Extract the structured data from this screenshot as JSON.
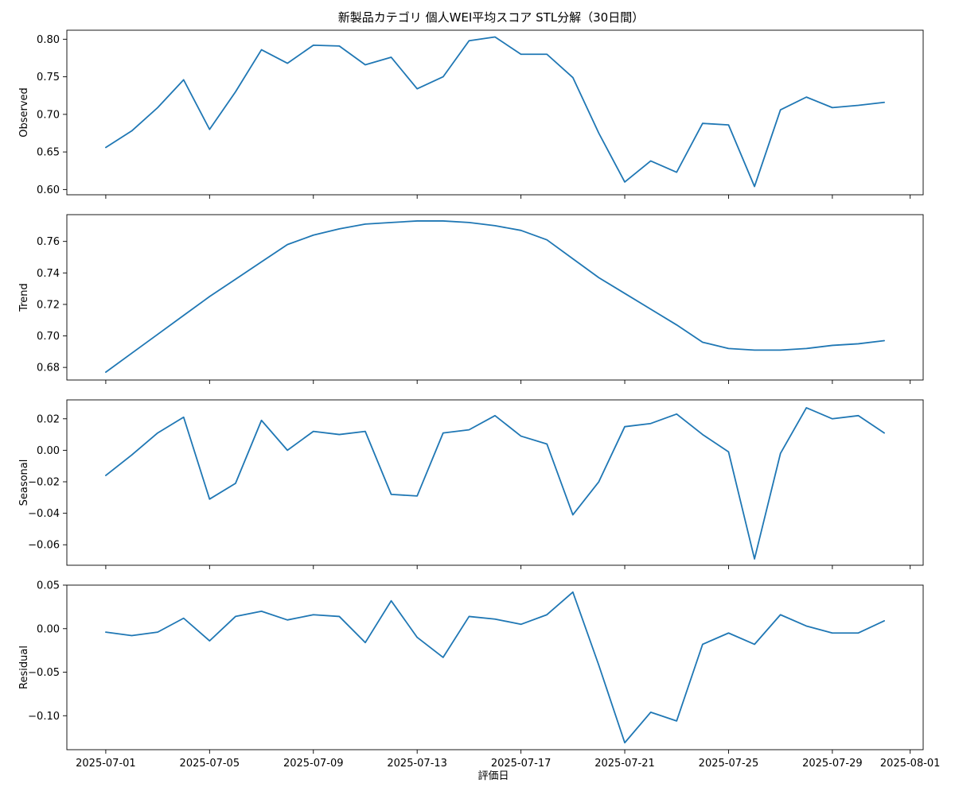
{
  "chart_data": {
    "type": "line",
    "title": "新製品カテゴリ 個人WEI平均スコア STL分解（30日間）",
    "xlabel": "評価日",
    "x": [
      "2025-07-01",
      "2025-07-02",
      "2025-07-03",
      "2025-07-04",
      "2025-07-05",
      "2025-07-06",
      "2025-07-07",
      "2025-07-08",
      "2025-07-09",
      "2025-07-10",
      "2025-07-11",
      "2025-07-12",
      "2025-07-13",
      "2025-07-14",
      "2025-07-15",
      "2025-07-16",
      "2025-07-17",
      "2025-07-18",
      "2025-07-19",
      "2025-07-20",
      "2025-07-21",
      "2025-07-22",
      "2025-07-23",
      "2025-07-24",
      "2025-07-25",
      "2025-07-26",
      "2025-07-27",
      "2025-07-28",
      "2025-07-29",
      "2025-07-30",
      "2025-07-31"
    ],
    "xticks": [
      "2025-07-01",
      "2025-07-05",
      "2025-07-09",
      "2025-07-13",
      "2025-07-17",
      "2025-07-21",
      "2025-07-25",
      "2025-07-29",
      "2025-08-01"
    ],
    "xlim": [
      "2025-06-29.5",
      "2025-08-01.5"
    ],
    "panels": [
      {
        "ylabel": "Observed",
        "ylim": [
          0.593,
          0.812
        ],
        "yticks": [
          "0.60",
          "0.65",
          "0.70",
          "0.75",
          "0.80"
        ],
        "values": [
          0.656,
          0.678,
          0.709,
          0.746,
          0.68,
          0.73,
          0.786,
          0.768,
          0.792,
          0.791,
          0.766,
          0.776,
          0.734,
          0.75,
          0.798,
          0.803,
          0.78,
          0.78,
          0.749,
          0.675,
          0.61,
          0.638,
          0.623,
          0.688,
          0.686,
          0.604,
          0.706,
          0.723,
          0.709,
          0.712,
          0.716
        ]
      },
      {
        "ylabel": "Trend",
        "ylim": [
          0.672,
          0.777
        ],
        "yticks": [
          "0.68",
          "0.70",
          "0.72",
          "0.74",
          "0.76"
        ],
        "values": [
          0.677,
          0.689,
          0.701,
          0.713,
          0.725,
          0.736,
          0.747,
          0.758,
          0.764,
          0.768,
          0.771,
          0.772,
          0.773,
          0.773,
          0.772,
          0.77,
          0.767,
          0.761,
          0.749,
          0.737,
          0.727,
          0.717,
          0.707,
          0.696,
          0.692,
          0.691,
          0.691,
          0.692,
          0.694,
          0.695,
          0.697
        ]
      },
      {
        "ylabel": "Seasonal",
        "ylim": [
          -0.073,
          0.032
        ],
        "yticks": [
          "0.02",
          "0.00",
          "−0.02",
          "−0.04",
          "−0.06"
        ],
        "values": [
          -0.016,
          -0.003,
          0.011,
          0.021,
          -0.031,
          -0.021,
          0.019,
          0.0,
          0.012,
          0.01,
          0.012,
          -0.028,
          -0.029,
          0.011,
          0.013,
          0.022,
          0.009,
          0.004,
          -0.041,
          -0.02,
          0.015,
          0.017,
          0.023,
          0.01,
          -0.001,
          -0.069,
          -0.002,
          0.027,
          0.02,
          0.022,
          0.011
        ]
      },
      {
        "ylabel": "Residual",
        "ylim": [
          -0.139,
          0.05
        ],
        "yticks": [
          "0.05",
          "0.00",
          "−0.05",
          "−0.10"
        ],
        "values": [
          -0.004,
          -0.008,
          -0.004,
          0.012,
          -0.014,
          0.014,
          0.02,
          0.01,
          0.016,
          0.014,
          -0.016,
          0.032,
          -0.01,
          -0.033,
          0.014,
          0.011,
          0.005,
          0.016,
          0.042,
          -0.042,
          -0.131,
          -0.096,
          -0.106,
          -0.018,
          -0.005,
          -0.018,
          0.016,
          0.003,
          -0.005,
          -0.005,
          0.009
        ]
      }
    ],
    "grid": false,
    "legend": "none",
    "line_color": "#1f77b4"
  }
}
